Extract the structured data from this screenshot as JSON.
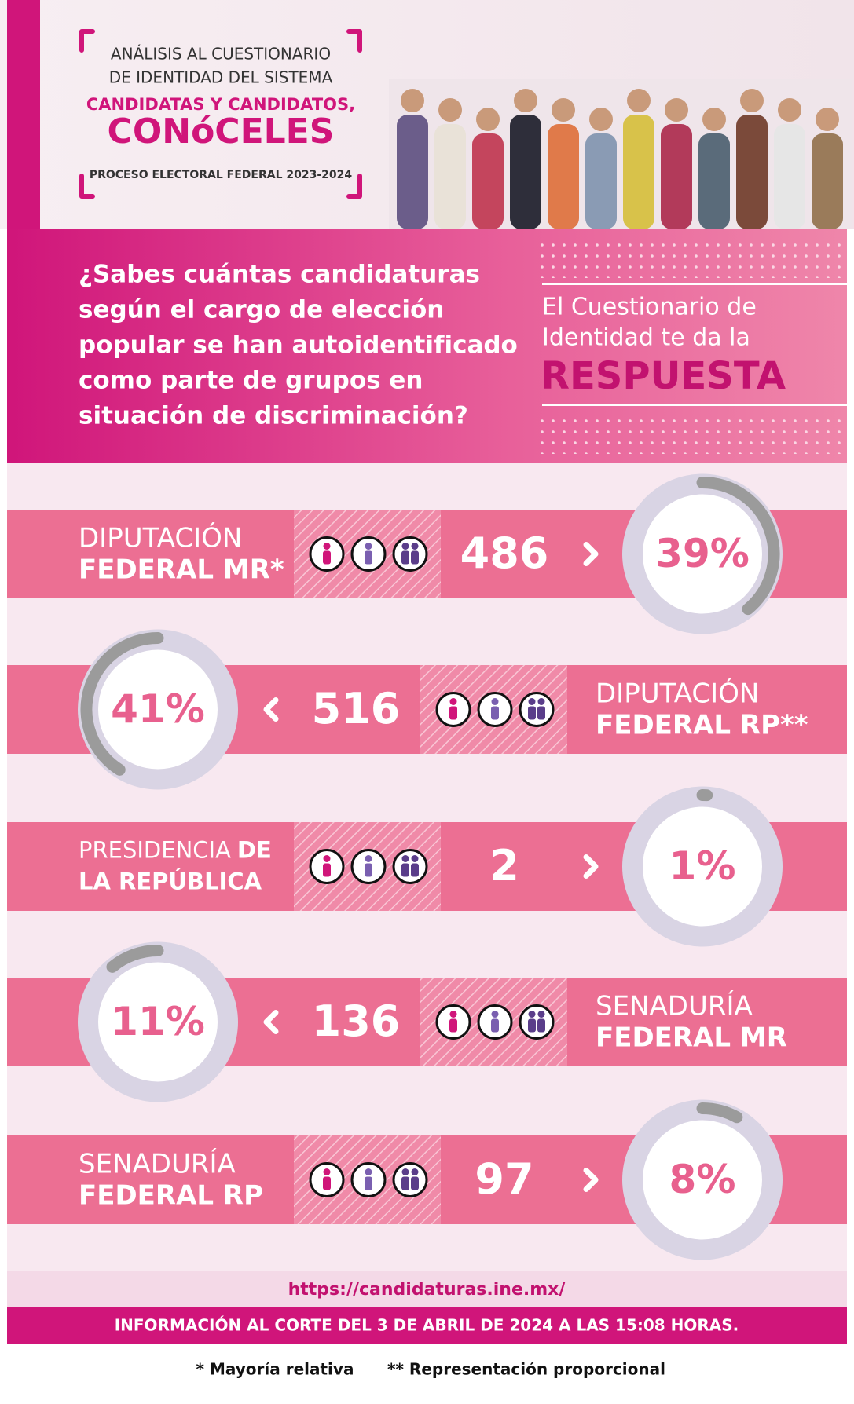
{
  "header": {
    "line1": "ANÁLISIS AL CUESTIONARIO",
    "line2": "DE IDENTIDAD DEL SISTEMA",
    "title1": "CANDIDATAS Y CANDIDATOS,",
    "title2": "CONóCELES",
    "subtitle": "PROCESO ELECTORAL FEDERAL 2023-2024"
  },
  "question": [
    "¿Sabes cuántas candidaturas",
    "según el cargo de elección",
    "popular se han autoidentificado",
    "como parte de grupos en",
    "situación de discriminación?"
  ],
  "answer": {
    "line1": "El Cuestionario de",
    "line2": "Identidad te da la",
    "emphasis": "RESPUESTA"
  },
  "rows": [
    {
      "label": [
        [
          {
            "text": "DIPUTACIÓN",
            "bold": false
          }
        ],
        [
          {
            "text": "FEDERAL MR*",
            "bold": true
          }
        ]
      ],
      "count": 486,
      "percent": 39,
      "percent_label": "39%"
    },
    {
      "label": [
        [
          {
            "text": "DIPUTACIÓN",
            "bold": false
          }
        ],
        [
          {
            "text": "FEDERAL RP**",
            "bold": true
          }
        ]
      ],
      "count": 516,
      "percent": 41,
      "percent_label": "41%"
    },
    {
      "label": [
        [
          {
            "text": "PRESIDENCIA",
            "bold": false
          },
          {
            "text": "DE",
            "bold": true
          }
        ],
        [
          {
            "text": "LA REPÚBLICA",
            "bold": true
          }
        ]
      ],
      "count": 2,
      "percent": 1,
      "percent_label": "1%"
    },
    {
      "label": [
        [
          {
            "text": "SENADURÍA",
            "bold": false
          }
        ],
        [
          {
            "text": "FEDERAL MR",
            "bold": true
          }
        ]
      ],
      "count": 136,
      "percent": 11,
      "percent_label": "11%"
    },
    {
      "label": [
        [
          {
            "text": "SENADURÍA",
            "bold": false
          }
        ],
        [
          {
            "text": "FEDERAL RP",
            "bold": true
          }
        ]
      ],
      "count": 97,
      "percent": 8,
      "percent_label": "8%"
    }
  ],
  "footer": {
    "url": "https://candidaturas.ine.mx/",
    "note": "INFORMACIÓN AL CORTE DEL 3 DE ABRIL DE 2024 A LAS 15:08 HORAS.",
    "footnotes": [
      "* Mayoría relativa",
      "** Representación proporcional"
    ]
  }
}
